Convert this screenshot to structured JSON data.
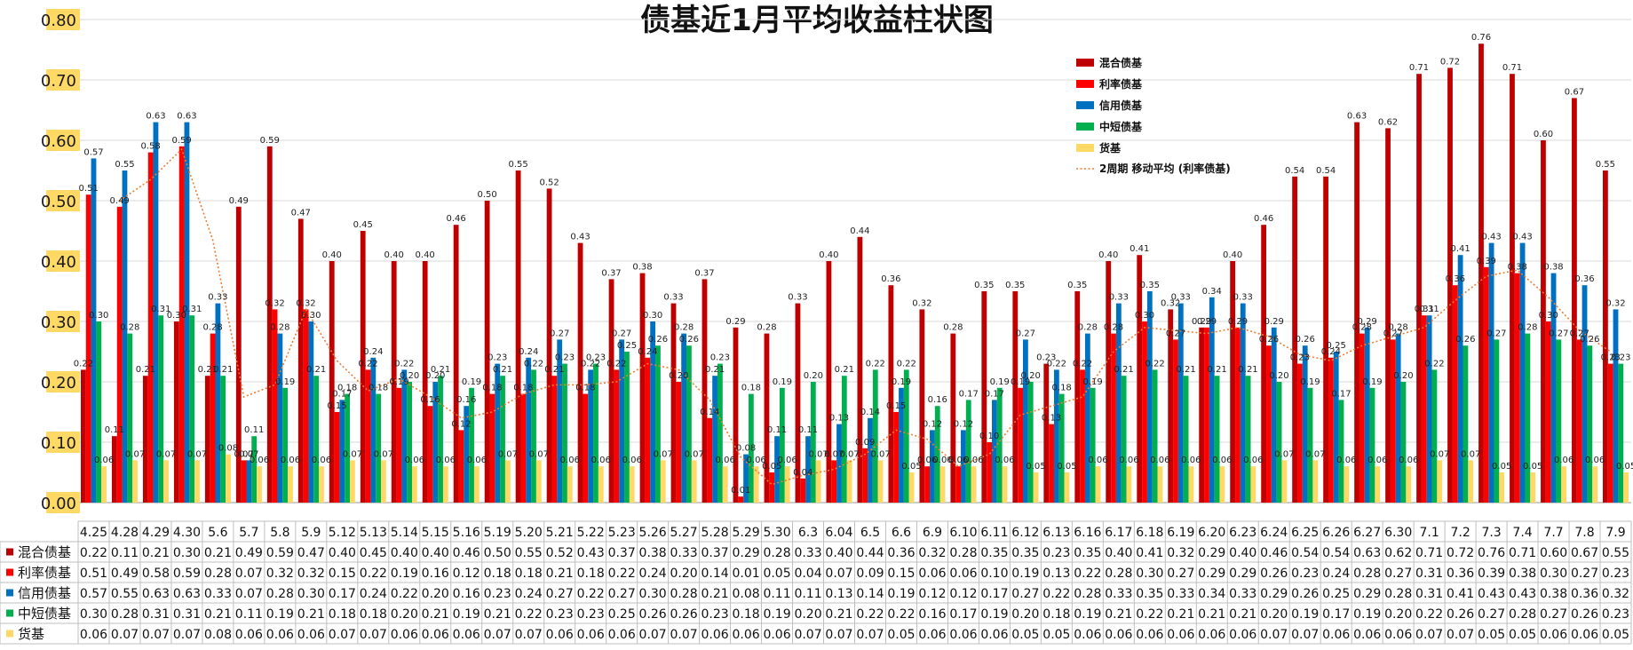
{
  "chart_data": {
    "type": "bar",
    "title": "债基近1月平均收益柱状图",
    "ylim": [
      0,
      0.8
    ],
    "yticks": [
      "0.00",
      "0.10",
      "0.20",
      "0.30",
      "0.40",
      "0.50",
      "0.60",
      "0.70",
      "0.80"
    ],
    "grid": true,
    "legend_placement": "top-right (inside plot)",
    "categories": [
      "4.25",
      "4.28",
      "4.29",
      "4.30",
      "5.6",
      "5.7",
      "5.8",
      "5.9",
      "5.12",
      "5.13",
      "5.14",
      "5.15",
      "5.16",
      "5.19",
      "5.20",
      "5.21",
      "5.22",
      "5.23",
      "5.26",
      "5.27",
      "5.28",
      "5.29",
      "5.30",
      "6.3",
      "6.04",
      "6.5",
      "6.6",
      "6.9",
      "6.10",
      "6.11",
      "6.12",
      "6.13",
      "6.16",
      "6.17",
      "6.18",
      "6.19",
      "6.20",
      "6.23",
      "6.24",
      "6.25",
      "6.26",
      "6.27",
      "6.30",
      "7.1",
      "7.2",
      "7.3",
      "7.4",
      "7.7",
      "7.8",
      "7.9"
    ],
    "series": [
      {
        "name": "混合债基",
        "color": "#C00000",
        "values": [
          0.22,
          0.11,
          0.21,
          0.3,
          0.21,
          0.49,
          0.59,
          0.47,
          0.4,
          0.45,
          0.4,
          0.4,
          0.46,
          0.5,
          0.55,
          0.52,
          0.43,
          0.37,
          0.38,
          0.33,
          0.37,
          0.29,
          0.28,
          0.33,
          0.4,
          0.44,
          0.36,
          0.32,
          0.28,
          0.35,
          0.35,
          0.23,
          0.35,
          0.4,
          0.41,
          0.32,
          0.29,
          0.4,
          0.46,
          0.54,
          0.54,
          0.63,
          0.62,
          0.71,
          0.72,
          0.76,
          0.71,
          0.6,
          0.67,
          0.55
        ]
      },
      {
        "name": "利率债基",
        "color": "#FF0000",
        "values": [
          0.51,
          0.49,
          0.58,
          0.59,
          0.28,
          0.07,
          0.32,
          0.32,
          0.15,
          0.22,
          0.19,
          0.16,
          0.12,
          0.18,
          0.18,
          0.21,
          0.18,
          0.22,
          0.24,
          0.2,
          0.14,
          0.01,
          0.05,
          0.04,
          0.07,
          0.09,
          0.15,
          0.06,
          0.06,
          0.1,
          0.19,
          0.13,
          0.22,
          0.28,
          0.3,
          0.27,
          0.29,
          0.29,
          0.26,
          0.23,
          0.24,
          0.28,
          0.27,
          0.31,
          0.36,
          0.39,
          0.38,
          0.3,
          0.27,
          0.23
        ]
      },
      {
        "name": "信用债基",
        "color": "#0070C0",
        "values": [
          0.57,
          0.55,
          0.63,
          0.63,
          0.33,
          0.07,
          0.28,
          0.3,
          0.17,
          0.24,
          0.22,
          0.2,
          0.16,
          0.23,
          0.24,
          0.27,
          0.22,
          0.27,
          0.3,
          0.28,
          0.21,
          0.08,
          0.11,
          0.11,
          0.13,
          0.14,
          0.19,
          0.12,
          0.12,
          0.17,
          0.27,
          0.22,
          0.28,
          0.33,
          0.35,
          0.33,
          0.34,
          0.33,
          0.29,
          0.26,
          0.25,
          0.29,
          0.28,
          0.31,
          0.41,
          0.43,
          0.43,
          0.38,
          0.36,
          0.32
        ]
      },
      {
        "name": "中短债基",
        "color": "#00B050",
        "values": [
          0.3,
          0.28,
          0.31,
          0.31,
          0.21,
          0.11,
          0.19,
          0.21,
          0.18,
          0.18,
          0.2,
          0.21,
          0.19,
          0.21,
          0.22,
          0.23,
          0.23,
          0.25,
          0.26,
          0.26,
          0.23,
          0.18,
          0.19,
          0.2,
          0.21,
          0.22,
          0.22,
          0.16,
          0.17,
          0.19,
          0.2,
          0.18,
          0.19,
          0.21,
          0.22,
          0.21,
          0.21,
          0.21,
          0.2,
          0.19,
          0.17,
          0.19,
          0.2,
          0.22,
          0.26,
          0.27,
          0.28,
          0.27,
          0.26,
          0.23
        ]
      },
      {
        "name": "货基",
        "color": "#FFD966",
        "values": [
          0.06,
          0.07,
          0.07,
          0.07,
          0.08,
          0.06,
          0.06,
          0.06,
          0.07,
          0.07,
          0.06,
          0.06,
          0.06,
          0.07,
          0.07,
          0.06,
          0.06,
          0.06,
          0.07,
          0.07,
          0.06,
          0.06,
          0.06,
          0.07,
          0.07,
          0.07,
          0.05,
          0.06,
          0.06,
          0.06,
          0.05,
          0.05,
          0.06,
          0.06,
          0.06,
          0.06,
          0.06,
          0.06,
          0.07,
          0.07,
          0.06,
          0.06,
          0.06,
          0.07,
          0.07,
          0.05,
          0.05,
          0.06,
          0.06,
          0.05
        ]
      }
    ],
    "trendline": {
      "name": "2周期 移动平均 (利率债基)",
      "color": "#ED7D31",
      "style": "dotted"
    }
  }
}
